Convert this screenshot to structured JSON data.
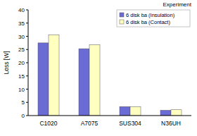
{
  "chart_data": {
    "type": "bar",
    "title": "Experiment",
    "y_label": "Loss [W]",
    "categories": [
      "C1020",
      "A7075",
      "SUS304",
      "N36UH"
    ],
    "series": [
      {
        "name": "6 disk ba (Insulation)",
        "color": "#6b6bd6",
        "values": [
          27.5,
          25.3,
          3.4,
          2.0
        ]
      },
      {
        "name": "6 disk ba (Contact)",
        "color": "#ffffc0",
        "values": [
          30.5,
          26.8,
          3.4,
          2.2
        ]
      }
    ],
    "ylim": [
      0,
      40
    ],
    "yticks": [
      0,
      5,
      10,
      15,
      20,
      25,
      30,
      35,
      40
    ],
    "grid": false,
    "legend": "upper right"
  }
}
